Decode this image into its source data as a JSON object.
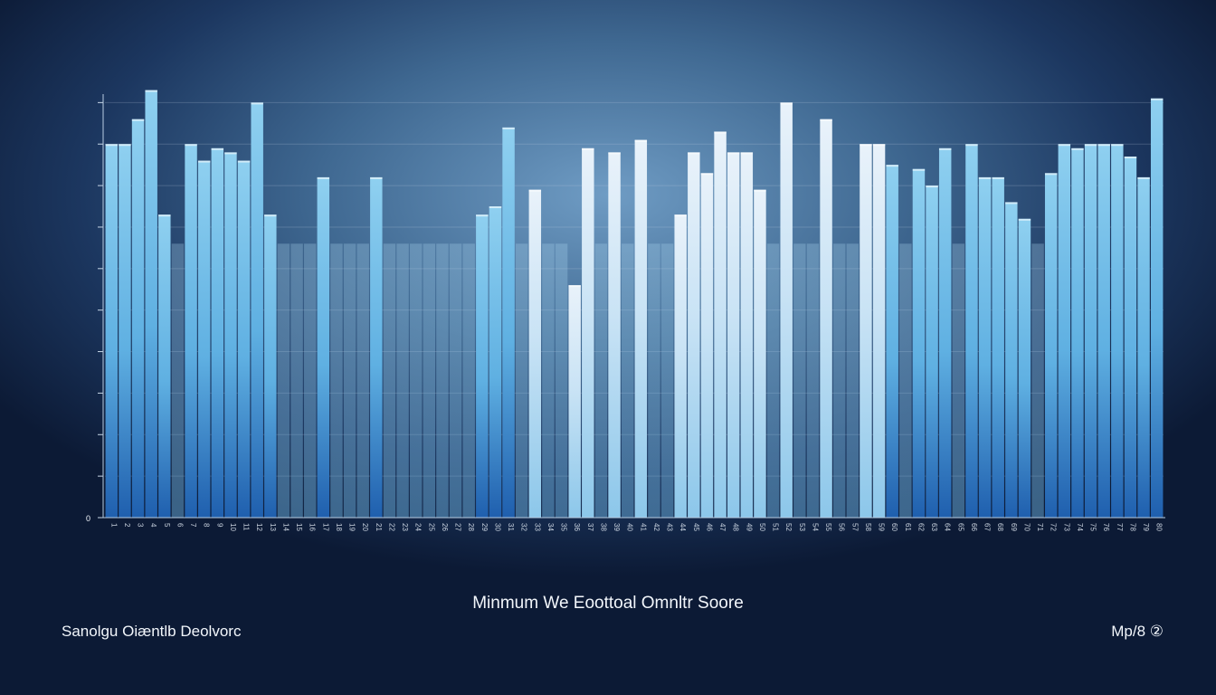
{
  "chart_data": {
    "type": "bar",
    "title": "",
    "xlabel": "Minmum We Eoottoal Omnltr Soore",
    "ylabel": "",
    "ylim": [
      0,
      10
    ],
    "grid": true,
    "y_ticks": [
      "0",
      "",
      "",
      "",
      "",
      "",
      "",
      "",
      "",
      "",
      ""
    ],
    "categories": [
      "1",
      "2",
      "3",
      "4",
      "5",
      "6",
      "7",
      "8",
      "9",
      "10",
      "11",
      "12",
      "13",
      "14",
      "15",
      "16",
      "17",
      "18",
      "19",
      "20",
      "21",
      "22",
      "23",
      "24",
      "25",
      "26",
      "27",
      "28",
      "29",
      "30",
      "31",
      "32",
      "33",
      "34",
      "35",
      "36",
      "37",
      "38",
      "39",
      "40",
      "41",
      "42",
      "43",
      "44",
      "45",
      "46",
      "47",
      "48",
      "49",
      "50",
      "51",
      "52",
      "53",
      "54",
      "55",
      "56",
      "57",
      "58",
      "59",
      "60",
      "61",
      "62",
      "63",
      "64",
      "65",
      "66",
      "67",
      "68",
      "69",
      "70",
      "71",
      "72",
      "73",
      "74",
      "75",
      "76",
      "77",
      "78",
      "79",
      "80"
    ],
    "values": [
      9.0,
      9.0,
      9.6,
      10.3,
      7.3,
      0,
      9.0,
      8.6,
      8.9,
      8.8,
      8.6,
      10.0,
      7.3,
      0,
      0,
      0,
      8.2,
      0,
      0,
      0,
      8.2,
      0,
      0,
      0,
      0,
      0,
      0,
      0,
      7.3,
      7.5,
      9.4,
      0,
      7.9,
      0,
      0,
      5.6,
      8.9,
      0,
      8.8,
      0,
      9.1,
      0,
      0,
      7.3,
      8.8,
      8.3,
      9.3,
      8.8,
      8.8,
      7.9,
      0,
      10.0,
      0,
      0,
      9.6,
      0,
      0,
      9.0,
      9.0,
      8.5,
      0,
      8.4,
      8.0,
      8.9,
      0,
      9.0,
      8.2,
      8.2,
      7.6,
      7.2,
      0,
      8.3,
      9.0,
      8.9,
      9.0,
      9.0,
      9.0,
      8.7,
      8.2,
      10.1
    ],
    "series": [
      {
        "name": "",
        "values": [
          9.0,
          9.0,
          9.6,
          10.3,
          7.3,
          0,
          9.0,
          8.6,
          8.9,
          8.8,
          8.6,
          10.0,
          7.3,
          0,
          0,
          0,
          8.2,
          0,
          0,
          0,
          8.2,
          0,
          0,
          0,
          0,
          0,
          0,
          0,
          7.3,
          7.5,
          9.4,
          0,
          7.9,
          0,
          0,
          5.6,
          8.9,
          0,
          8.8,
          0,
          9.1,
          0,
          0,
          7.3,
          8.8,
          8.3,
          9.3,
          8.8,
          8.8,
          7.9,
          0,
          10.0,
          0,
          0,
          9.6,
          0,
          0,
          9.0,
          9.0,
          8.5,
          0,
          8.4,
          8.0,
          8.9,
          0,
          9.0,
          8.2,
          8.2,
          7.6,
          7.2,
          0,
          8.3,
          9.0,
          8.9,
          9.0,
          9.0,
          9.0,
          8.7,
          8.2,
          10.1
        ]
      }
    ],
    "colors": {
      "bar_dark": "#1f5fae",
      "bar_mid": "#5fb0e2",
      "bar_light": "#e9f2fa",
      "grid": "#c8d8e8",
      "text": "#f2f6fb"
    }
  },
  "footer": {
    "left": "Sanolgu Oiæntlb Deolvorc",
    "right": "Mp/8 ②"
  }
}
